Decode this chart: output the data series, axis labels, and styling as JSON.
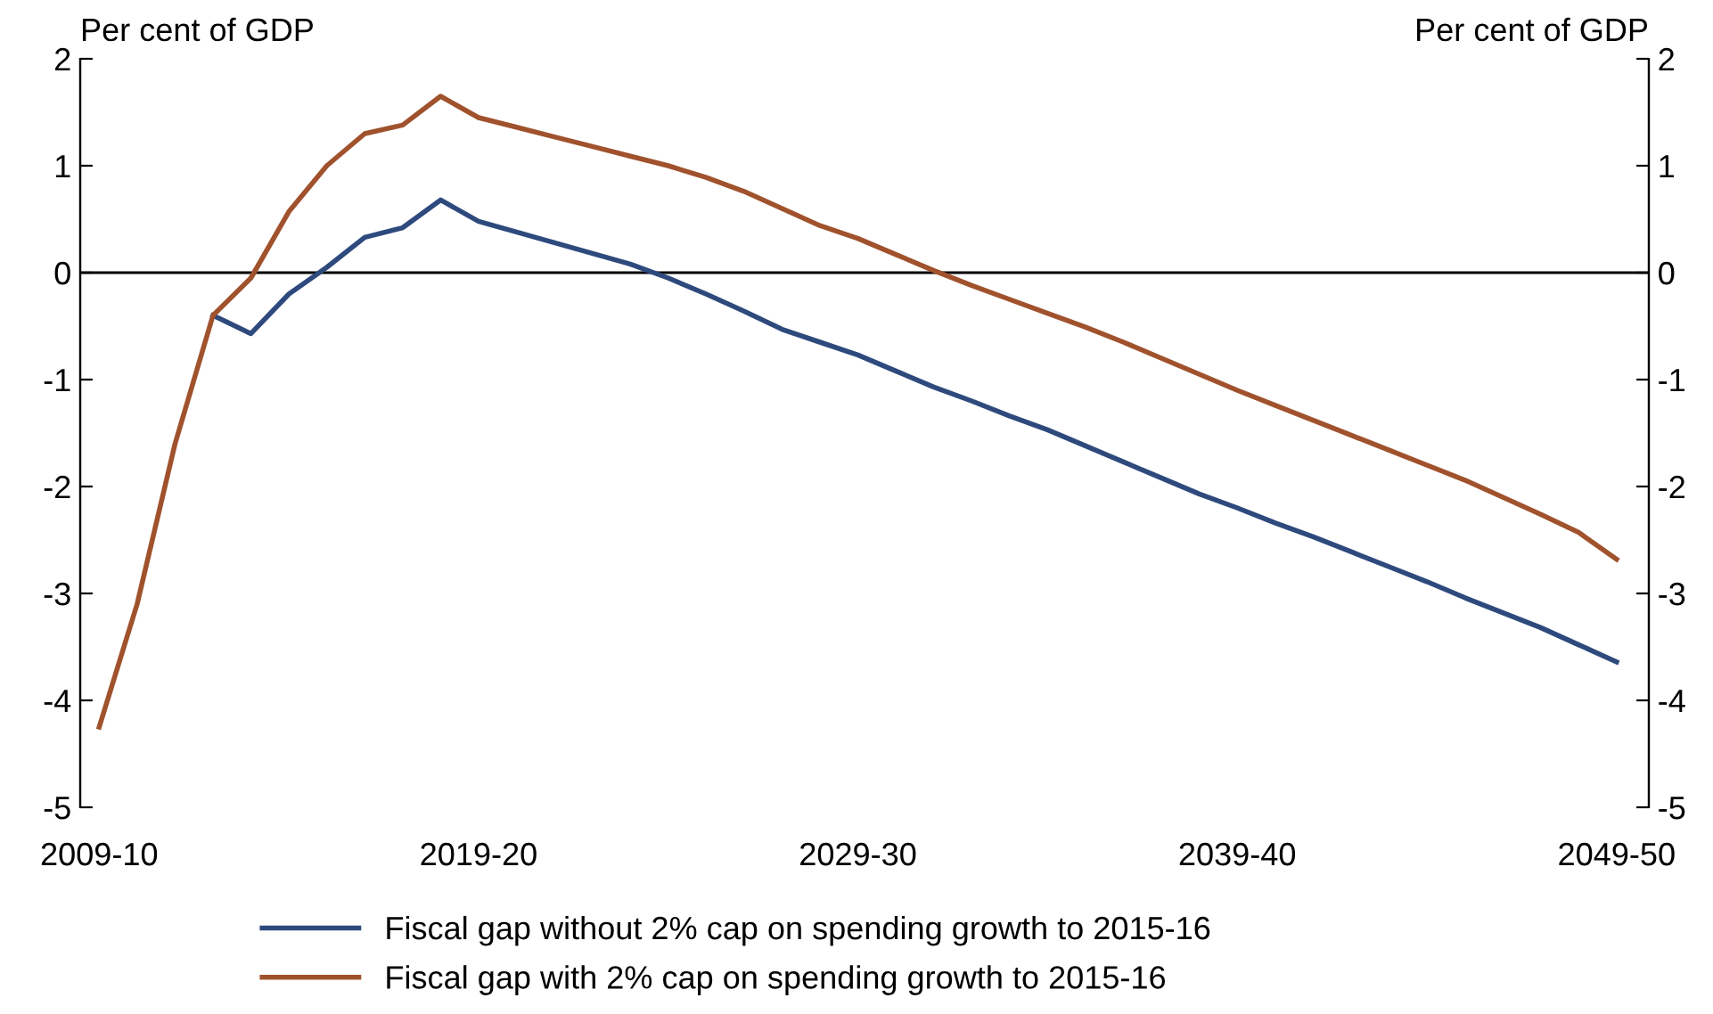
{
  "chart_data": {
    "type": "line",
    "ylabel": "Per cent of GDP",
    "y2label": "Per cent of GDP",
    "categories": [
      "2009-10",
      null,
      null,
      null,
      null,
      null,
      null,
      null,
      null,
      null,
      "2019-20",
      null,
      null,
      null,
      null,
      null,
      null,
      null,
      null,
      null,
      "2029-30",
      null,
      null,
      null,
      null,
      null,
      null,
      null,
      null,
      null,
      "2039-40",
      null,
      null,
      null,
      null,
      null,
      null,
      null,
      null,
      null,
      "2049-50"
    ],
    "series": [
      {
        "name": "Fiscal gap without 2% cap on spending growth to 2015-16",
        "color": "#2e4a7d",
        "values": [
          null,
          null,
          null,
          -0.4,
          -0.57,
          -0.2,
          0.05,
          0.33,
          0.42,
          0.68,
          0.48,
          0.38,
          0.28,
          0.18,
          0.08,
          -0.05,
          -0.2,
          -0.36,
          -0.53,
          -0.65,
          -0.77,
          -0.92,
          -1.07,
          -1.2,
          -1.34,
          -1.47,
          -1.62,
          -1.77,
          -1.92,
          -2.07,
          -2.2,
          -2.34,
          -2.47,
          -2.61,
          -2.75,
          -2.89,
          -3.04,
          -3.18,
          -3.32,
          -3.48,
          -3.64
        ]
      },
      {
        "name": "Fiscal gap with 2% cap on spending growth to 2015-16",
        "color": "#a0522d",
        "values": [
          -4.25,
          -3.1,
          -1.6,
          -0.4,
          -0.05,
          0.57,
          1.0,
          1.3,
          1.38,
          1.65,
          1.45,
          1.36,
          1.27,
          1.18,
          1.09,
          1.0,
          0.89,
          0.76,
          0.6,
          0.44,
          0.32,
          0.17,
          0.02,
          -0.12,
          -0.25,
          -0.38,
          -0.51,
          -0.65,
          -0.8,
          -0.95,
          -1.1,
          -1.24,
          -1.38,
          -1.52,
          -1.66,
          -1.8,
          -1.94,
          -2.1,
          -2.26,
          -2.43,
          -2.68
        ]
      }
    ],
    "ylim": [
      -5,
      2
    ],
    "yticks": [
      -5,
      -4,
      -3,
      -2,
      -1,
      0,
      1,
      2
    ],
    "y2lim": [
      -5,
      2
    ],
    "y2ticks": [
      -5,
      -4,
      -3,
      -2,
      -1,
      0,
      1,
      2
    ],
    "ref_lines": [
      {
        "axis": "y",
        "value": 0,
        "color": "#000000"
      }
    ],
    "grid": false,
    "legend": "bottom",
    "marker": "none",
    "line_style": "solid"
  }
}
